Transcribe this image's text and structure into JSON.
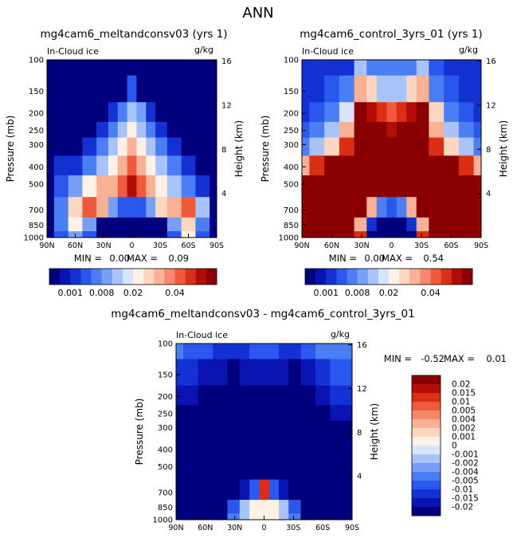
{
  "figure": {
    "title": "ANN"
  },
  "palette": {
    "levels": [
      "#00007f",
      "#0a14b3",
      "#1432d4",
      "#2a57ee",
      "#4a7ef5",
      "#789ff8",
      "#a8c2fa",
      "#d6e4fc",
      "#fff1e6",
      "#fcd6c0",
      "#f8b195",
      "#f5876a",
      "#f05a3c",
      "#dc2e14",
      "#b20d06",
      "#8a0000"
    ]
  },
  "panels": [
    {
      "title": "mg4cam6_meltandconsv03 (yrs 1)",
      "field": "In-Cloud ice",
      "units": "g/kg",
      "min_label": "MIN =",
      "min_value": "0.00",
      "max_label": "MAX =",
      "max_value": "0.09"
    },
    {
      "title": "mg4cam6_control_3yrs_01 (yrs 1)",
      "field": "In-Cloud ice",
      "units": "g/kg",
      "min_label": "MIN =",
      "min_value": "0.00",
      "max_label": "MAX =",
      "max_value": "0.54"
    },
    {
      "title": "mg4cam6_meltandconsv03 - mg4cam6_control_3yrs_01",
      "field": "In-Cloud ice",
      "units": "g/kg",
      "min_label": "MIN =",
      "min_value": "-0.52",
      "max_label": "MAX =",
      "max_value": "0.01"
    }
  ],
  "axes": {
    "ylabel_left": "Pressure (mb)",
    "ylabel_right": "Height (km)",
    "pressure_ticks": [
      "100",
      "150",
      "200",
      "250",
      "300",
      "400",
      "500",
      "700",
      "850",
      "1000"
    ],
    "height_ticks": [
      "16",
      "12",
      "8",
      "4"
    ],
    "lat_ticks": [
      "90N",
      "60N",
      "30N",
      "0",
      "30S",
      "60S",
      "90S"
    ]
  },
  "colorbar_top": {
    "labels": [
      "0.001",
      "0.008",
      "0.02",
      "0.04"
    ]
  },
  "colorbar_diff": {
    "labels": [
      "0.02",
      "0.015",
      "0.01",
      "0.005",
      "0.004",
      "0.002",
      "0.001",
      "0",
      "-0.001",
      "-0.002",
      "-0.004",
      "-0.005",
      "-0.01",
      "-0.015",
      "-0.02"
    ]
  },
  "chart_data": [
    {
      "type": "heatmap",
      "title": "mg4cam6_meltandconsv03 (yrs 1)",
      "field": "In-Cloud ice",
      "units": "g/kg",
      "x": [
        -90,
        -75,
        -60,
        -45,
        -30,
        -20,
        -10,
        0,
        10,
        20,
        30,
        45,
        60,
        75,
        90
      ],
      "y": [
        100,
        150,
        200,
        250,
        300,
        400,
        500,
        700,
        850,
        1000
      ],
      "values": [
        [
          0,
          0,
          0,
          0,
          0,
          0,
          0,
          0,
          0,
          0,
          0,
          0,
          0,
          0,
          0
        ],
        [
          0,
          0,
          0,
          0,
          0,
          0,
          0,
          0.002,
          0,
          0,
          0,
          0,
          0,
          0,
          0
        ],
        [
          0,
          0,
          0,
          0,
          0,
          0.001,
          0.004,
          0.008,
          0.005,
          0.001,
          0,
          0,
          0,
          0,
          0
        ],
        [
          0,
          0,
          0,
          0,
          0.001,
          0.004,
          0.008,
          0.012,
          0.008,
          0.004,
          0.001,
          0,
          0,
          0,
          0
        ],
        [
          0,
          0,
          0,
          0.001,
          0.004,
          0.008,
          0.012,
          0.02,
          0.012,
          0.008,
          0.004,
          0.001,
          0,
          0,
          0
        ],
        [
          0,
          0.001,
          0.001,
          0.004,
          0.008,
          0.012,
          0.02,
          0.03,
          0.02,
          0.012,
          0.008,
          0.004,
          0.001,
          0,
          0
        ],
        [
          0,
          0.002,
          0.006,
          0.012,
          0.02,
          0.02,
          0.03,
          0.05,
          0.03,
          0.02,
          0.012,
          0.008,
          0.004,
          0.001,
          0
        ],
        [
          0,
          0.004,
          0.015,
          0.03,
          0.02,
          0.006,
          0.002,
          0.002,
          0.002,
          0.006,
          0.015,
          0.02,
          0.03,
          0.008,
          0
        ],
        [
          0,
          0.004,
          0.012,
          0.006,
          0,
          0,
          0,
          0,
          0,
          0,
          0,
          0.006,
          0.015,
          0.004,
          0
        ],
        [
          0,
          0.002,
          0.006,
          0.002,
          0,
          0,
          0,
          0,
          0,
          0,
          0,
          0.002,
          0.012,
          0.002,
          0
        ]
      ],
      "min": 0.0,
      "max": 0.09,
      "colorbar_labels": [
        "0.001",
        "0.008",
        "0.02",
        "0.04"
      ]
    },
    {
      "type": "heatmap",
      "title": "mg4cam6_control_3yrs_01 (yrs 1)",
      "field": "In-Cloud ice",
      "units": "g/kg",
      "x": [
        -90,
        -75,
        -60,
        -45,
        -30,
        -20,
        -10,
        0,
        10,
        20,
        30,
        45,
        60,
        75,
        90
      ],
      "y": [
        100,
        150,
        200,
        250,
        300,
        400,
        500,
        700,
        850,
        1000
      ],
      "values": [
        [
          0.001,
          0.001,
          0.001,
          0.001,
          0.008,
          0.004,
          0.004,
          0.004,
          0.004,
          0.004,
          0.008,
          0.002,
          0.001,
          0.001,
          0.001
        ],
        [
          0.001,
          0.001,
          0.002,
          0.004,
          0.02,
          0.015,
          0.008,
          0.008,
          0.008,
          0.015,
          0.02,
          0.004,
          0.002,
          0.001,
          0.001
        ],
        [
          0.001,
          0.002,
          0.004,
          0.01,
          0.06,
          0.05,
          0.04,
          0.03,
          0.04,
          0.05,
          0.06,
          0.015,
          0.004,
          0.002,
          0.001
        ],
        [
          0.002,
          0.004,
          0.008,
          0.02,
          0.06,
          0.06,
          0.06,
          0.05,
          0.06,
          0.06,
          0.06,
          0.02,
          0.008,
          0.004,
          0.002
        ],
        [
          0.004,
          0.008,
          0.015,
          0.04,
          0.06,
          0.06,
          0.06,
          0.06,
          0.06,
          0.06,
          0.06,
          0.04,
          0.015,
          0.008,
          0.004
        ],
        [
          0.02,
          0.04,
          0.06,
          0.06,
          0.06,
          0.06,
          0.06,
          0.06,
          0.06,
          0.06,
          0.06,
          0.06,
          0.06,
          0.04,
          0.02
        ],
        [
          0.06,
          0.06,
          0.06,
          0.06,
          0.06,
          0.06,
          0.06,
          0.06,
          0.06,
          0.06,
          0.06,
          0.06,
          0.06,
          0.06,
          0.06
        ],
        [
          0.06,
          0.06,
          0.06,
          0.06,
          0.06,
          0.02,
          0.004,
          0.002,
          0.004,
          0.02,
          0.06,
          0.06,
          0.06,
          0.06,
          0.06
        ],
        [
          0.06,
          0.06,
          0.06,
          0.06,
          0.02,
          0.001,
          0,
          0,
          0,
          0.001,
          0.02,
          0.06,
          0.06,
          0.06,
          0.06
        ],
        [
          0.06,
          0.06,
          0.06,
          0.06,
          0.04,
          0,
          0,
          0,
          0,
          0,
          0.04,
          0.06,
          0.06,
          0.06,
          0.06
        ]
      ],
      "min": 0.0,
      "max": 0.54,
      "colorbar_labels": [
        "0.001",
        "0.008",
        "0.02",
        "0.04"
      ]
    },
    {
      "type": "heatmap",
      "title": "mg4cam6_meltandconsv03 - mg4cam6_control_3yrs_01",
      "field": "In-Cloud ice",
      "units": "g/kg",
      "x": [
        -90,
        -75,
        -60,
        -45,
        -30,
        -20,
        -10,
        0,
        10,
        20,
        30,
        45,
        60,
        75,
        90
      ],
      "y": [
        100,
        150,
        200,
        250,
        300,
        400,
        500,
        700,
        850,
        1000
      ],
      "values": [
        [
          -0.004,
          -0.005,
          -0.005,
          -0.01,
          -0.01,
          -0.01,
          -0.005,
          -0.005,
          -0.005,
          -0.01,
          -0.01,
          -0.005,
          -0.004,
          -0.004,
          -0.004
        ],
        [
          -0.01,
          -0.01,
          -0.015,
          -0.015,
          -0.02,
          -0.015,
          -0.015,
          -0.015,
          -0.015,
          -0.015,
          -0.02,
          -0.015,
          -0.01,
          -0.005,
          -0.005
        ],
        [
          -0.015,
          -0.015,
          -0.02,
          -0.02,
          -0.02,
          -0.02,
          -0.02,
          -0.02,
          -0.02,
          -0.02,
          -0.02,
          -0.02,
          -0.015,
          -0.01,
          -0.01
        ],
        [
          -0.02,
          -0.02,
          -0.02,
          -0.02,
          -0.02,
          -0.02,
          -0.02,
          -0.02,
          -0.02,
          -0.02,
          -0.02,
          -0.02,
          -0.02,
          -0.015,
          -0.015
        ],
        [
          -0.02,
          -0.02,
          -0.02,
          -0.02,
          -0.02,
          -0.02,
          -0.02,
          -0.02,
          -0.02,
          -0.02,
          -0.02,
          -0.02,
          -0.02,
          -0.02,
          -0.02
        ],
        [
          -0.02,
          -0.02,
          -0.02,
          -0.02,
          -0.02,
          -0.02,
          -0.02,
          -0.02,
          -0.02,
          -0.02,
          -0.02,
          -0.02,
          -0.02,
          -0.02,
          -0.02
        ],
        [
          -0.02,
          -0.02,
          -0.02,
          -0.02,
          -0.02,
          -0.02,
          -0.02,
          -0.02,
          -0.02,
          -0.02,
          -0.02,
          -0.02,
          -0.02,
          -0.02,
          -0.02
        ],
        [
          -0.02,
          -0.02,
          -0.02,
          -0.02,
          -0.02,
          -0.015,
          -0.005,
          0.015,
          -0.005,
          -0.015,
          -0.02,
          -0.02,
          -0.02,
          -0.02,
          -0.02
        ],
        [
          -0.02,
          -0.02,
          -0.02,
          -0.02,
          -0.005,
          -0.001,
          0.001,
          0.001,
          0.001,
          -0.001,
          -0.005,
          -0.02,
          -0.02,
          -0.02,
          -0.02
        ],
        [
          -0.02,
          -0.02,
          -0.02,
          -0.02,
          -0.004,
          -0.001,
          0.001,
          0.001,
          0.001,
          -0.001,
          -0.004,
          -0.02,
          -0.02,
          -0.02,
          -0.02
        ]
      ],
      "min": -0.52,
      "max": 0.01,
      "colorbar_labels": [
        "0.02",
        "0.015",
        "0.01",
        "0.005",
        "0.004",
        "0.002",
        "0.001",
        "0",
        "-0.001",
        "-0.002",
        "-0.004",
        "-0.005",
        "-0.01",
        "-0.015",
        "-0.02"
      ]
    }
  ]
}
